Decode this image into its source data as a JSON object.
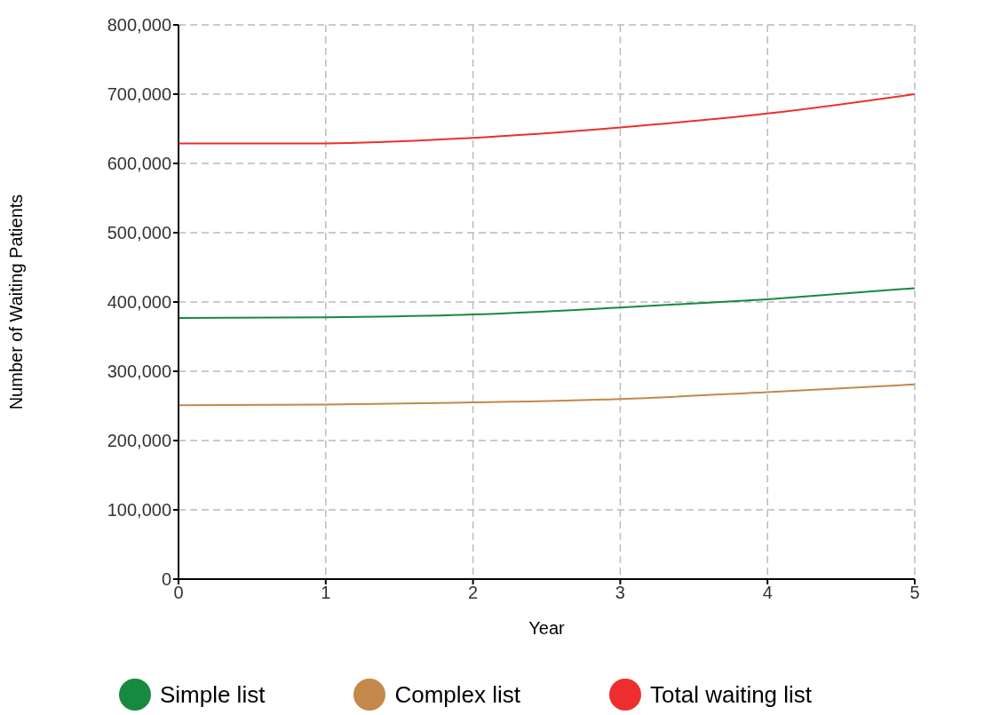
{
  "chart_data": {
    "type": "line",
    "xlabel": "Year",
    "ylabel": "Number of Waiting Patients",
    "x": [
      0,
      1,
      2,
      3,
      4,
      5
    ],
    "series": [
      {
        "name": "Simple list",
        "color": "#168a3e",
        "values": [
          377000,
          378000,
          382000,
          392000,
          404000,
          420000
        ]
      },
      {
        "name": "Complex list",
        "color": "#c4884a",
        "values": [
          251000,
          252000,
          255000,
          260000,
          270000,
          281000
        ]
      },
      {
        "name": "Total waiting list",
        "color": "#ee2e2e",
        "values": [
          629000,
          629000,
          637000,
          652000,
          672000,
          700000
        ]
      }
    ],
    "xlim": [
      0,
      5
    ],
    "xticks": [
      0,
      1,
      2,
      3,
      4,
      5
    ],
    "ylim": [
      0,
      800000
    ],
    "yticks": [
      0,
      {
        "value": 100000,
        "label": "100,000"
      },
      {
        "value": 200000,
        "label": "200,000"
      },
      {
        "value": 300000,
        "label": "300,000"
      },
      {
        "value": 400000,
        "label": "400,000"
      },
      {
        "value": 500000,
        "label": "500,000"
      },
      {
        "value": 600000,
        "label": "600,000"
      },
      {
        "value": 700000,
        "label": "700,000"
      },
      {
        "value": 800000,
        "label": "800,000"
      }
    ],
    "grid": true,
    "legend": "bottom",
    "marker": "none",
    "line_style": "solid"
  }
}
